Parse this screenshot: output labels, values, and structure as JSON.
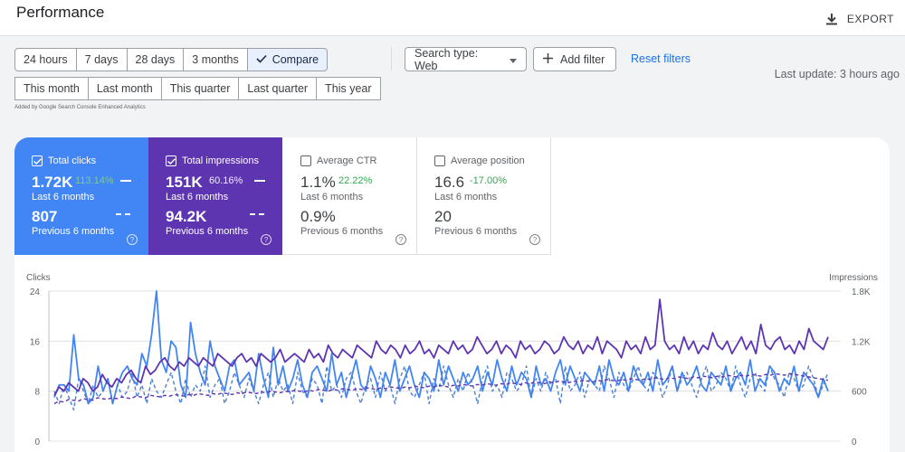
{
  "header": {
    "title": "Performance",
    "export_label": "EXPORT"
  },
  "date_filters": {
    "row1": [
      "24 hours",
      "7 days",
      "28 days",
      "3 months"
    ],
    "compare_label": "Compare",
    "row2": [
      "This month",
      "Last month",
      "This quarter",
      "Last quarter",
      "This year"
    ]
  },
  "filters": {
    "search_type_label": "Search type: Web",
    "add_filter_label": "Add filter",
    "reset_label": "Reset filters"
  },
  "last_update": "Last update: 3 hours ago",
  "added_note": "Added by Google Search Console Enhanced Analytics",
  "metrics": {
    "clicks": {
      "label": "Total clicks",
      "value": "1.72K",
      "change": "113.14%",
      "period": "Last 6 months",
      "prev_value": "807",
      "prev_period": "Previous 6 months",
      "checked": true,
      "color": "#4285f4"
    },
    "impressions": {
      "label": "Total impressions",
      "value": "151K",
      "change": "60.16%",
      "period": "Last 6 months",
      "prev_value": "94.2K",
      "prev_period": "Previous 6 months",
      "checked": true,
      "color": "#5e35b1"
    },
    "ctr": {
      "label": "Average CTR",
      "value": "1.1%",
      "change": "22.22%",
      "period": "Last 6 months",
      "prev_value": "0.9%",
      "prev_period": "Previous 6 months",
      "checked": false
    },
    "position": {
      "label": "Average position",
      "value": "16.6",
      "change": "-17.00%",
      "period": "Last 6 months",
      "prev_value": "20",
      "prev_period": "Previous 6 months",
      "checked": false
    }
  },
  "chart_data": {
    "type": "line",
    "left_axis": {
      "label": "Clicks",
      "ticks": [
        "24",
        "16",
        "8",
        "0"
      ],
      "range": [
        0,
        24
      ]
    },
    "right_axis": {
      "label": "Impressions",
      "ticks": [
        "1.8K",
        "1.2K",
        "600",
        "0"
      ],
      "range": [
        0,
        1800
      ]
    },
    "grid": true,
    "series": [
      {
        "values": [
          7,
          9,
          9,
          8,
          17,
          10,
          9,
          6,
          7,
          12,
          8,
          10,
          6,
          9,
          11,
          12,
          10,
          9,
          14,
          12,
          17,
          24,
          13,
          11,
          16,
          15,
          9,
          7,
          19,
          14,
          11,
          9,
          16,
          12,
          10,
          8,
          12,
          13,
          9,
          10,
          11,
          8,
          14,
          10,
          7,
          15,
          9,
          12,
          8,
          10,
          13,
          9,
          7,
          11,
          12,
          10,
          8,
          14,
          9,
          11,
          7,
          10,
          13,
          9,
          8,
          12,
          10,
          7,
          11,
          9,
          13,
          8,
          10,
          12,
          9,
          7,
          11,
          10,
          8,
          13,
          9,
          12,
          10,
          8,
          11,
          9,
          10,
          12,
          8,
          11,
          9,
          13,
          10,
          8,
          12,
          9,
          11,
          10,
          7,
          12,
          9,
          10,
          8,
          11,
          13,
          9,
          12,
          10,
          8,
          11,
          10,
          9,
          12,
          8,
          13,
          10,
          9,
          11,
          8,
          12,
          10,
          9,
          11,
          8,
          13,
          9,
          10,
          12,
          8,
          11,
          9,
          10,
          12,
          9,
          8,
          11,
          10,
          9,
          12,
          8,
          10,
          11,
          9,
          13,
          8,
          10,
          9,
          12,
          11,
          8,
          10,
          9,
          12,
          8,
          11,
          10,
          9,
          7,
          10,
          8
        ],
        "color": "#4285f4",
        "style": "solid"
      },
      {
        "values": [
          8,
          6,
          9,
          7,
          5,
          10,
          8,
          6,
          9,
          7,
          8,
          10,
          6,
          9,
          7,
          8,
          11,
          7,
          9,
          6,
          10,
          8,
          7,
          9,
          11,
          8,
          6,
          10,
          7,
          9,
          8,
          12,
          7,
          9,
          10,
          6,
          8,
          11,
          9,
          7,
          10,
          8,
          6,
          9,
          11,
          7,
          10,
          8,
          9,
          6,
          11,
          8,
          7,
          10,
          9,
          6,
          12,
          8,
          9,
          7,
          10,
          11,
          8,
          6,
          9,
          10,
          7,
          11,
          8,
          9,
          6,
          10,
          12,
          8,
          7,
          9,
          11,
          6,
          10,
          8,
          12,
          9,
          7,
          10,
          8,
          11,
          9,
          6,
          10,
          12,
          8,
          9,
          7,
          11,
          10,
          8,
          9,
          12,
          7,
          10,
          8,
          11,
          9,
          10,
          6,
          12,
          8,
          9,
          11,
          7,
          10,
          9,
          8,
          12,
          10,
          7,
          11,
          9,
          8,
          10,
          12,
          9,
          8,
          11,
          10,
          7,
          9,
          12,
          8,
          10,
          11,
          9,
          7,
          10,
          12,
          8,
          9,
          11,
          10,
          8,
          12,
          9,
          7,
          10,
          11,
          9,
          8,
          12,
          10,
          9,
          7,
          11,
          10,
          8,
          9,
          12,
          10,
          7,
          9,
          11
        ],
        "color": "#4a7fd1",
        "style": "dashed"
      },
      {
        "values": [
          550,
          650,
          600,
          700,
          650,
          600,
          750,
          700,
          600,
          650,
          800,
          700,
          650,
          750,
          700,
          800,
          850,
          750,
          700,
          900,
          800,
          850,
          950,
          1000,
          900,
          850,
          950,
          900,
          1000,
          950,
          900,
          1000,
          950,
          900,
          1050,
          1000,
          950,
          900,
          1000,
          1050,
          950,
          1000,
          900,
          1050,
          1000,
          950,
          1000,
          1100,
          950,
          1000,
          1050,
          1000,
          950,
          1100,
          1000,
          1050,
          950,
          1150,
          1050,
          1000,
          1100,
          1050,
          1000,
          1150,
          1100,
          1050,
          1000,
          1200,
          1100,
          1050,
          1150,
          1100,
          1000,
          1150,
          1050,
          1100,
          1200,
          1050,
          1100,
          1000,
          1150,
          1100,
          1050,
          1200,
          1100,
          1150,
          1050,
          1100,
          1250,
          1150,
          1050,
          1100,
          1200,
          1050,
          1150,
          1100,
          1000,
          1200,
          1100,
          1150,
          1050,
          1100,
          1200,
          1150,
          1050,
          1100,
          1250,
          1150,
          1100,
          1200,
          1050,
          1150,
          1100,
          1250,
          1050,
          1200,
          1150,
          1100,
          1000,
          1200,
          1100,
          1150,
          1050,
          1250,
          1100,
          1150,
          1700,
          1200,
          1100,
          1150,
          1050,
          1250,
          1100,
          1200,
          1050,
          1150,
          1100,
          1300,
          1150,
          1100,
          1200,
          1050,
          1150,
          1250,
          1100,
          1200,
          1050,
          1400,
          1150,
          1100,
          1200,
          1250,
          1100,
          1150,
          1050,
          1200,
          1100,
          1350,
          1200,
          1150,
          1100,
          1250
        ],
        "color": "#5e35b1",
        "style": "solid"
      },
      {
        "values": [
          450,
          480,
          470,
          500,
          490,
          480,
          510,
          500,
          490,
          520,
          510,
          500,
          520,
          510,
          530,
          520,
          510,
          540,
          530,
          520,
          550,
          540,
          530,
          550,
          540,
          560,
          550,
          540,
          560,
          550,
          570,
          560,
          550,
          570,
          560,
          580,
          570,
          560,
          580,
          570,
          590,
          580,
          570,
          590,
          580,
          600,
          590,
          580,
          600,
          590,
          610,
          600,
          590,
          610,
          600,
          620,
          610,
          600,
          620,
          610,
          630,
          620,
          610,
          630,
          620,
          640,
          630,
          620,
          640,
          630,
          650,
          640,
          630,
          650,
          640,
          660,
          650,
          640,
          660,
          650,
          670,
          660,
          650,
          670,
          660,
          680,
          670,
          660,
          680,
          670,
          690,
          680,
          670,
          690,
          680,
          700,
          690,
          680,
          700,
          690,
          710,
          700,
          690,
          710,
          700,
          720,
          710,
          700,
          720,
          710,
          730,
          720,
          710,
          730,
          720,
          740,
          730,
          720,
          740,
          730,
          750,
          740,
          730,
          750,
          740,
          760,
          750,
          740,
          760,
          750,
          770,
          760,
          750,
          770,
          760,
          780,
          770,
          760,
          780,
          770,
          790,
          780,
          770,
          790,
          780,
          800,
          790,
          780,
          800,
          790,
          810,
          800,
          790,
          810,
          800,
          790,
          780,
          770,
          760,
          750,
          740,
          730
        ],
        "color": "#5e35b1",
        "style": "dashed"
      }
    ]
  }
}
